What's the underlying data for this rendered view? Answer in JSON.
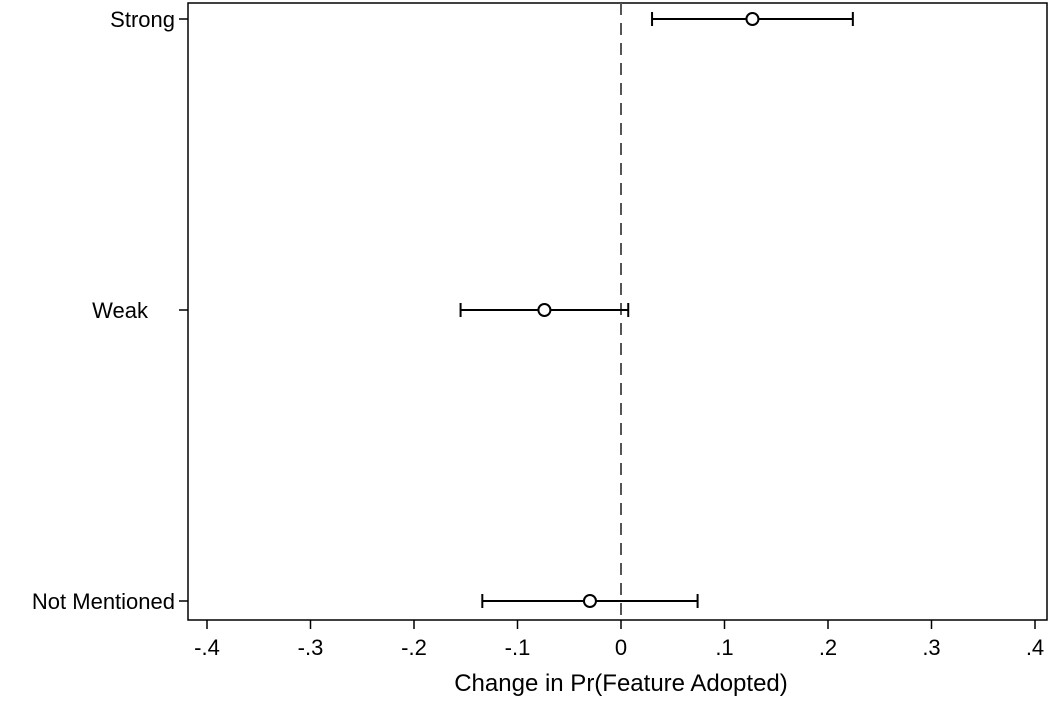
{
  "chart_data": {
    "type": "scatter",
    "title": "",
    "xlabel": "Change in Pr(Feature Adopted)",
    "ylabel": "",
    "xlim": [
      -0.42,
      0.42
    ],
    "x_ticks": [
      -0.4,
      -0.3,
      -0.2,
      -0.1,
      0,
      0.1,
      0.2,
      0.3,
      0.4
    ],
    "x_tick_labels": [
      "-.4",
      "-.3",
      "-.2",
      "-.1",
      "0",
      ".1",
      ".2",
      ".3",
      ".4"
    ],
    "reference_line": {
      "x": 0,
      "style": "dashed"
    },
    "categories": [
      "Strong",
      "Weak",
      "Not Mentioned"
    ],
    "points": [
      {
        "label": "Strong",
        "estimate": 0.127,
        "ci_low": 0.03,
        "ci_high": 0.224
      },
      {
        "label": "Weak",
        "estimate": -0.074,
        "ci_low": -0.155,
        "ci_high": 0.007
      },
      {
        "label": "Not Mentioned",
        "estimate": -0.03,
        "ci_low": -0.134,
        "ci_high": 0.074
      }
    ],
    "grid": false,
    "legend": "none"
  }
}
